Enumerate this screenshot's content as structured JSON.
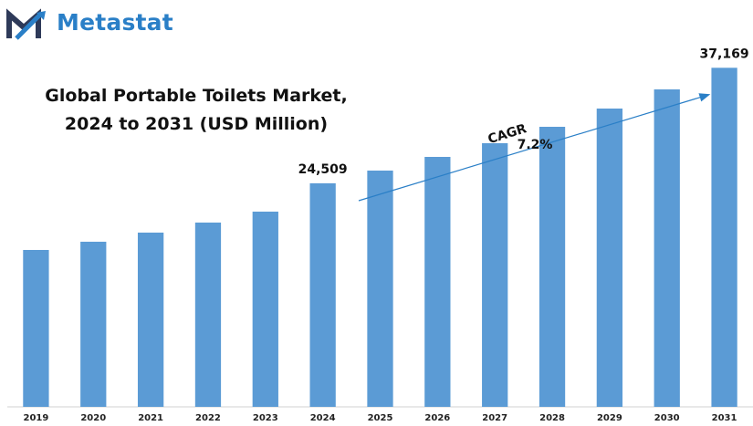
{
  "brand": {
    "name": "Metastat"
  },
  "chart_data": {
    "type": "bar",
    "title": "Global Portable Toilets Market, 2024 to 2031 (USD Million)",
    "title_lines": [
      "Global Portable Toilets Market,",
      "2024 to 2031 (USD Million)"
    ],
    "categories": [
      "2019",
      "2020",
      "2021",
      "2022",
      "2023",
      "2024",
      "2025",
      "2026",
      "2027",
      "2028",
      "2029",
      "2030",
      "2031"
    ],
    "values": [
      17200,
      18100,
      19100,
      20200,
      21400,
      24509,
      25900,
      27400,
      28900,
      30700,
      32700,
      34800,
      37169
    ],
    "ylim": [
      0,
      40000
    ],
    "bar_color": "#5b9bd5",
    "data_labels": [
      {
        "category": "2024",
        "text": "24,509"
      },
      {
        "category": "2031",
        "text": "37,169"
      }
    ],
    "annotation": {
      "line1": "CAGR",
      "line2": "7.2%"
    },
    "grid": false,
    "legend": "none"
  }
}
